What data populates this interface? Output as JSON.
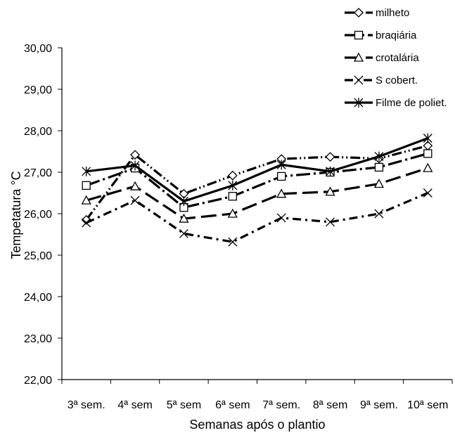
{
  "chart_data": {
    "type": "line",
    "title": "",
    "xlabel": "Semanas após o plantio",
    "ylabel": "Tempetatura °C",
    "ylim": [
      22,
      30
    ],
    "yticks": [
      "22,00",
      "23,00",
      "24,00",
      "25,00",
      "26,00",
      "27,00",
      "28,00",
      "29,00",
      "30,00"
    ],
    "grid": false,
    "legend_position": "top-right",
    "categories": [
      "3ª sem.",
      "4ª sem",
      "5ª sem",
      "6ª sem",
      "7ª sem.",
      "8ª sem",
      "9ª sem.",
      "10ª sem"
    ],
    "series": [
      {
        "name": "milheto",
        "values": [
          25.85,
          27.42,
          26.48,
          26.92,
          27.32,
          27.37,
          27.33,
          27.64
        ],
        "marker": "diamond",
        "dash": "round-dot-dash",
        "color": "#000000"
      },
      {
        "name": "braqiária",
        "values": [
          26.68,
          27.1,
          26.15,
          26.42,
          26.9,
          27.0,
          27.12,
          27.45
        ],
        "marker": "square",
        "dash": "long-dash-dot",
        "color": "#000000"
      },
      {
        "name": "crotalária",
        "values": [
          26.32,
          26.66,
          25.88,
          26.0,
          26.48,
          26.53,
          26.72,
          27.1
        ],
        "marker": "triangle",
        "dash": "long-dash",
        "color": "#000000"
      },
      {
        "name": "S cobert.",
        "values": [
          25.78,
          26.32,
          25.52,
          25.32,
          25.9,
          25.8,
          26.0,
          26.5
        ],
        "marker": "x",
        "dash": "dash-dot",
        "color": "#000000"
      },
      {
        "name": "Filme de poliet.",
        "values": [
          27.02,
          27.16,
          26.3,
          26.68,
          27.18,
          27.02,
          27.38,
          27.82
        ],
        "marker": "star",
        "dash": "solid",
        "color": "#000000"
      }
    ]
  }
}
